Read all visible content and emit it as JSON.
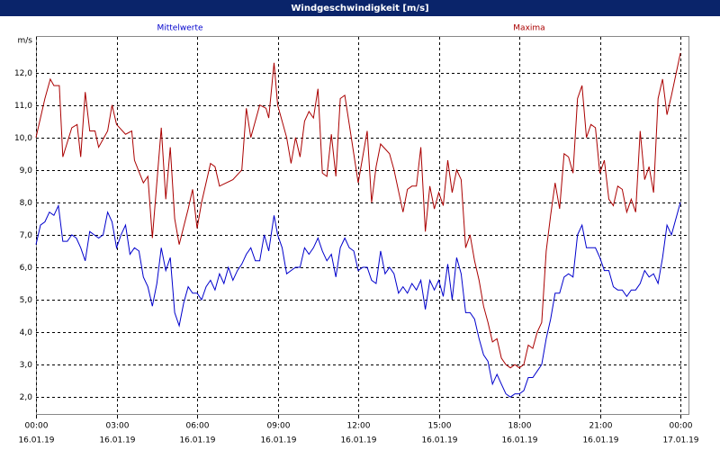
{
  "chart_data": {
    "type": "line",
    "title": "Windgeschwindigkeit [m/s]",
    "y_label": "m/s",
    "xlim": [
      0,
      1458
    ],
    "ylim": [
      1.45,
      13.1
    ],
    "grid": true,
    "xticks": [
      {
        "value": 0,
        "label": "00:00",
        "date": "16.01.19"
      },
      {
        "value": 180,
        "label": "03:00",
        "date": "16.01.19"
      },
      {
        "value": 360,
        "label": "06:00",
        "date": "16.01.19"
      },
      {
        "value": 540,
        "label": "09:00",
        "date": "16.01.19"
      },
      {
        "value": 720,
        "label": "12:00",
        "date": "16.01.19"
      },
      {
        "value": 900,
        "label": "15:00",
        "date": "16.01.19"
      },
      {
        "value": 1080,
        "label": "18:00",
        "date": "16.01.19"
      },
      {
        "value": 1260,
        "label": "21:00",
        "date": "16.01.19"
      },
      {
        "value": 1440,
        "label": "00:00",
        "date": "17.01.19"
      }
    ],
    "yticks": [
      {
        "value": 2,
        "label": "2,0"
      },
      {
        "value": 3,
        "label": "3,0"
      },
      {
        "value": 4,
        "label": "4,0"
      },
      {
        "value": 5,
        "label": "5,0"
      },
      {
        "value": 6,
        "label": "6,0"
      },
      {
        "value": 7,
        "label": "7,0"
      },
      {
        "value": 8,
        "label": "8,0"
      },
      {
        "value": 9,
        "label": "9,0"
      },
      {
        "value": 10,
        "label": "10,0"
      },
      {
        "value": 11,
        "label": "11,0"
      },
      {
        "value": 12,
        "label": "12,0"
      }
    ],
    "series": [
      {
        "name": "Mittelwerte",
        "color": "#0000cc",
        "x": [
          0,
          10,
          20,
          30,
          40,
          50,
          60,
          70,
          80,
          90,
          100,
          110,
          120,
          130,
          140,
          150,
          160,
          170,
          180,
          190,
          200,
          210,
          220,
          230,
          240,
          250,
          260,
          270,
          280,
          290,
          300,
          310,
          320,
          330,
          340,
          350,
          360,
          370,
          380,
          390,
          400,
          410,
          420,
          430,
          440,
          450,
          460,
          470,
          480,
          490,
          500,
          510,
          520,
          532,
          540,
          550,
          560,
          570,
          580,
          590,
          600,
          610,
          620,
          630,
          640,
          650,
          660,
          670,
          680,
          690,
          700,
          710,
          720,
          730,
          740,
          750,
          760,
          770,
          780,
          790,
          800,
          810,
          820,
          830,
          840,
          850,
          860,
          870,
          880,
          890,
          900,
          910,
          920,
          930,
          940,
          950,
          960,
          970,
          980,
          990,
          1000,
          1010,
          1020,
          1030,
          1040,
          1050,
          1060,
          1070,
          1080,
          1090,
          1100,
          1110,
          1120,
          1130,
          1140,
          1150,
          1160,
          1170,
          1180,
          1190,
          1200,
          1210,
          1220,
          1230,
          1240,
          1250,
          1260,
          1270,
          1280,
          1290,
          1300,
          1310,
          1320,
          1330,
          1340,
          1350,
          1360,
          1370,
          1380,
          1390,
          1400,
          1410,
          1420,
          1440
        ],
        "values": [
          6.7,
          7.3,
          7.4,
          7.7,
          7.6,
          7.9,
          6.8,
          6.8,
          7.0,
          6.9,
          6.6,
          6.2,
          7.1,
          7.0,
          6.9,
          7.0,
          7.7,
          7.4,
          6.6,
          7.0,
          7.3,
          6.4,
          6.6,
          6.5,
          5.7,
          5.4,
          4.8,
          5.5,
          6.6,
          5.9,
          6.3,
          4.6,
          4.2,
          4.9,
          5.4,
          5.2,
          5.2,
          5.0,
          5.4,
          5.6,
          5.3,
          5.8,
          5.5,
          6.0,
          5.6,
          5.9,
          6.1,
          6.4,
          6.6,
          6.2,
          6.2,
          7.0,
          6.5,
          7.6,
          7.0,
          6.6,
          5.8,
          5.9,
          6.0,
          6.0,
          6.6,
          6.4,
          6.6,
          6.9,
          6.5,
          6.2,
          6.4,
          5.7,
          6.6,
          6.9,
          6.6,
          6.5,
          5.9,
          6.0,
          6.0,
          5.6,
          5.5,
          6.5,
          5.8,
          6.0,
          5.8,
          5.2,
          5.4,
          5.2,
          5.5,
          5.3,
          5.6,
          4.7,
          5.6,
          5.3,
          5.6,
          5.1,
          6.1,
          5.0,
          6.3,
          5.8,
          4.6,
          4.6,
          4.4,
          3.8,
          3.3,
          3.1,
          2.4,
          2.7,
          2.4,
          2.1,
          2.0,
          2.1,
          2.1,
          2.2,
          2.6,
          2.6,
          2.8,
          3.0,
          3.8,
          4.4,
          5.2,
          5.2,
          5.7,
          5.8,
          5.7,
          7.0,
          7.3,
          6.6,
          6.6,
          6.6,
          6.3,
          5.9,
          5.9,
          5.4,
          5.3,
          5.3,
          5.1,
          5.3,
          5.3,
          5.5,
          5.9,
          5.7,
          5.8,
          5.5,
          6.3,
          7.3,
          7.0,
          8.0
        ]
      },
      {
        "name": "Maxima",
        "color": "#aa0000",
        "x": [
          0,
          20,
          32,
          40,
          52,
          60,
          80,
          92,
          100,
          110,
          120,
          132,
          140,
          160,
          170,
          180,
          200,
          214,
          220,
          240,
          250,
          260,
          280,
          290,
          300,
          310,
          320,
          340,
          350,
          360,
          370,
          390,
          400,
          410,
          440,
          460,
          470,
          480,
          500,
          514,
          520,
          532,
          540,
          560,
          570,
          580,
          590,
          600,
          610,
          620,
          630,
          640,
          650,
          660,
          670,
          680,
          690,
          700,
          720,
          740,
          750,
          760,
          770,
          790,
          800,
          820,
          830,
          840,
          850,
          860,
          870,
          880,
          890,
          900,
          910,
          920,
          930,
          940,
          950,
          960,
          970,
          980,
          990,
          1000,
          1010,
          1020,
          1030,
          1040,
          1050,
          1060,
          1070,
          1080,
          1090,
          1100,
          1110,
          1120,
          1130,
          1140,
          1150,
          1160,
          1170,
          1180,
          1190,
          1200,
          1210,
          1220,
          1230,
          1240,
          1250,
          1260,
          1270,
          1280,
          1290,
          1300,
          1310,
          1320,
          1330,
          1340,
          1350,
          1360,
          1370,
          1380,
          1390,
          1400,
          1410,
          1420,
          1440
        ],
        "values": [
          10.0,
          11.2,
          11.8,
          11.6,
          11.6,
          9.4,
          10.3,
          10.4,
          9.4,
          11.4,
          10.2,
          10.2,
          9.7,
          10.2,
          11.0,
          10.4,
          10.1,
          10.2,
          9.3,
          8.6,
          8.8,
          6.9,
          10.3,
          8.1,
          9.7,
          7.5,
          6.7,
          7.8,
          8.4,
          7.2,
          8.0,
          9.2,
          9.1,
          8.5,
          8.7,
          9.0,
          10.9,
          10.0,
          11.0,
          10.9,
          10.6,
          12.3,
          11.0,
          10.0,
          9.2,
          10.0,
          9.4,
          10.5,
          10.8,
          10.6,
          11.5,
          8.9,
          8.8,
          10.1,
          8.8,
          11.2,
          11.3,
          10.4,
          8.6,
          10.2,
          8.0,
          9.1,
          9.8,
          9.5,
          9.0,
          7.7,
          8.4,
          8.5,
          8.5,
          9.7,
          7.1,
          8.5,
          7.8,
          8.3,
          7.9,
          9.3,
          8.3,
          9.0,
          8.7,
          6.6,
          7.0,
          6.2,
          5.6,
          4.8,
          4.3,
          3.7,
          3.8,
          3.2,
          3.0,
          2.9,
          3.0,
          2.9,
          3.0,
          3.6,
          3.5,
          4.0,
          4.3,
          6.5,
          7.6,
          8.6,
          7.8,
          9.5,
          9.4,
          8.9,
          11.2,
          11.6,
          10.0,
          10.4,
          10.3,
          8.9,
          9.3,
          8.1,
          7.9,
          8.5,
          8.4,
          7.7,
          8.1,
          7.7,
          10.2,
          8.7,
          9.1,
          8.3,
          11.2,
          11.8,
          10.7,
          11.3,
          12.6
        ]
      }
    ]
  }
}
